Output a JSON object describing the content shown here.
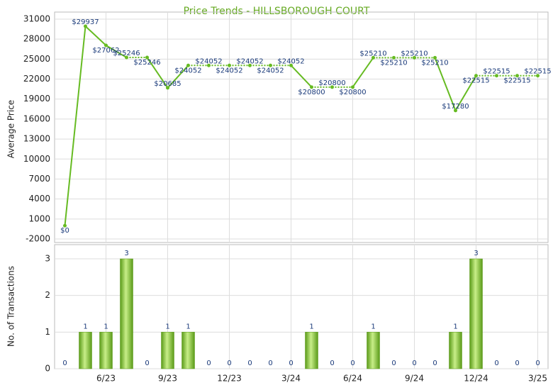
{
  "chart_data": [
    {
      "type": "line",
      "title": "Price Trends - HILLSBOROUGH COURT",
      "y_label": "Average Price",
      "color": "#66bb22",
      "values": [
        0,
        29937,
        27062,
        25246,
        25246,
        20685,
        24052,
        24052,
        24052,
        24052,
        24052,
        24052,
        20800,
        20800,
        20800,
        25210,
        25210,
        25210,
        25210,
        17280,
        22515,
        22515,
        22515,
        22515
      ],
      "value_labels": [
        "$0",
        "$29937",
        "$27062",
        "$25246",
        "$25246",
        "$20685",
        "$24052",
        "$24052",
        "$24052",
        "$24052",
        "$24052",
        "$24052",
        "$20800",
        "$20800",
        "$20800",
        "$25210",
        "$25210",
        "$25210",
        "$25210",
        "$17280",
        "$22515",
        "$22515",
        "$22515",
        "$22515"
      ],
      "ylim": [
        -2000,
        31000
      ],
      "yticks": [
        -2000,
        1000,
        4000,
        7000,
        10000,
        13000,
        16000,
        19000,
        22000,
        25000,
        28000,
        31000
      ],
      "grid": true
    },
    {
      "type": "bar",
      "y_label": "No. of Transactions",
      "color": "#77bb22",
      "categories": [
        null,
        null,
        "6/23",
        null,
        null,
        "9/23",
        null,
        null,
        "12/23",
        null,
        null,
        "3/24",
        null,
        null,
        "6/24",
        null,
        null,
        "9/24",
        null,
        null,
        "12/24",
        null,
        null,
        "3/25"
      ],
      "values": [
        0,
        1,
        1,
        3,
        0,
        1,
        1,
        0,
        0,
        0,
        0,
        0,
        1,
        0,
        0,
        1,
        0,
        0,
        0,
        1,
        3,
        0,
        0,
        0
      ],
      "ylim": [
        0,
        3
      ],
      "yticks": [
        0,
        1,
        2,
        3
      ],
      "grid": true
    }
  ]
}
